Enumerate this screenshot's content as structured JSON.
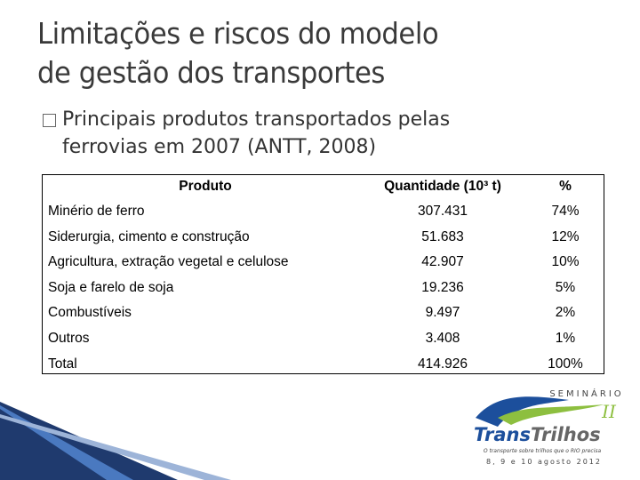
{
  "slide": {
    "title": [
      "Limitações e riscos do modelo",
      "de gestão dos transportes"
    ],
    "bullet": [
      "Principais produtos transportados pelas",
      "ferrovias em 2007 (ANTT, 2008)"
    ],
    "table": {
      "header": [
        "Produto",
        "Quantidade (10³ t)",
        "%"
      ],
      "rows": [
        [
          "Minério de ferro",
          "307.431",
          "74%"
        ],
        [
          "Siderurgia, cimento e construção",
          "51.683",
          "12%"
        ],
        [
          "Agricultura, extração vegetal e celulose",
          "42.907",
          "10%"
        ],
        [
          "Soja e farelo de soja",
          "19.236",
          "5%"
        ],
        [
          "Combustíveis",
          "9.497",
          "2%"
        ],
        [
          "Outros",
          "3.408",
          "1%"
        ],
        [
          "Total",
          "414.926",
          "100%"
        ]
      ]
    },
    "logo": {
      "top": "SEMINÁRIO",
      "roman": "II",
      "name_a": "Trans",
      "name_b": "Trilhos",
      "tagline": "O transporte sobre trilhos que o RIO precisa",
      "dates": "8, 9 e 10 agosto 2012"
    }
  }
}
